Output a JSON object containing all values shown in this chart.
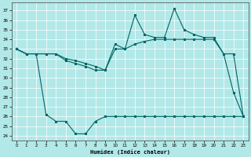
{
  "xlabel": "Humidex (Indice chaleur)",
  "background_color": "#b2e8e8",
  "grid_color": "#ffffff",
  "line_color": "#006666",
  "ylim": [
    23.5,
    37.8
  ],
  "xlim": [
    -0.5,
    23.5
  ],
  "yticks": [
    24,
    25,
    26,
    27,
    28,
    29,
    30,
    31,
    32,
    33,
    34,
    35,
    36,
    37
  ],
  "xticks": [
    0,
    1,
    2,
    3,
    4,
    5,
    6,
    7,
    8,
    9,
    10,
    11,
    12,
    13,
    14,
    15,
    16,
    17,
    18,
    19,
    20,
    21,
    22,
    23
  ],
  "line_min_x": [
    0,
    1,
    2,
    3,
    4,
    5,
    6,
    7,
    8,
    9,
    10,
    11,
    12,
    13,
    14,
    15,
    16,
    17,
    18,
    19,
    20,
    21,
    22,
    23
  ],
  "line_min_y": [
    33.0,
    32.5,
    32.5,
    26.2,
    25.5,
    25.5,
    24.2,
    24.2,
    25.5,
    26.0,
    26.0,
    26.0,
    26.0,
    26.0,
    26.0,
    26.0,
    26.0,
    26.0,
    26.0,
    26.0,
    26.0,
    26.0,
    26.0,
    26.0
  ],
  "line_max_x": [
    0,
    1,
    2,
    3,
    4,
    5,
    6,
    7,
    8,
    9,
    10,
    11,
    12,
    13,
    14,
    15,
    16,
    17,
    18,
    19,
    20,
    21,
    22,
    23
  ],
  "line_max_y": [
    33.0,
    32.5,
    32.5,
    32.5,
    32.5,
    31.8,
    31.5,
    31.2,
    30.8,
    30.8,
    33.5,
    33.0,
    36.5,
    34.5,
    34.2,
    34.2,
    37.2,
    35.0,
    34.5,
    34.2,
    34.2,
    32.5,
    28.5,
    26.0
  ],
  "line_avg_x": [
    0,
    1,
    2,
    3,
    4,
    5,
    6,
    7,
    8,
    9,
    10,
    11,
    12,
    13,
    14,
    15,
    16,
    17,
    18,
    19,
    20,
    21,
    22,
    23
  ],
  "line_avg_y": [
    33.0,
    32.5,
    32.5,
    32.5,
    32.5,
    32.0,
    31.8,
    31.5,
    31.2,
    30.8,
    33.0,
    33.0,
    33.5,
    33.8,
    34.0,
    34.0,
    34.0,
    34.0,
    34.0,
    34.0,
    34.0,
    32.5,
    32.5,
    26.0
  ]
}
